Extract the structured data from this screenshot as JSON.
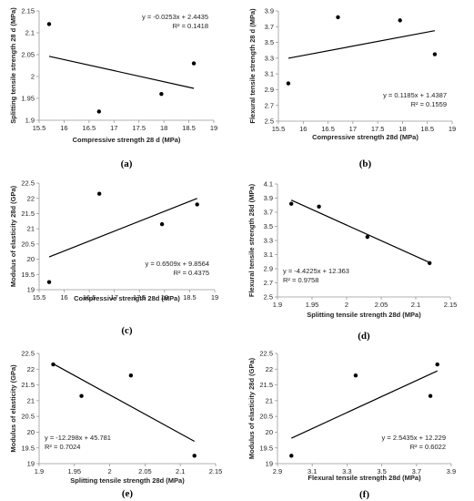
{
  "chart_data": [
    {
      "type": "scatter",
      "panel_label": "(a)",
      "xlabel": "Compressive strength 28 d (MPa)",
      "ylabel": "Splitting tensile strength 28 d (MPa)",
      "xlim": [
        15.5,
        19
      ],
      "ylim": [
        1.9,
        2.15
      ],
      "xticks": [
        "15.5",
        "16",
        "16.5",
        "17",
        "17.5",
        "18",
        "18.5",
        "19"
      ],
      "yticks": [
        "1.9",
        "1.95",
        "2",
        "2.05",
        "2.1",
        "2.15"
      ],
      "x": [
        15.7,
        16.7,
        17.95,
        18.6
      ],
      "y": [
        2.12,
        1.92,
        1.96,
        2.03
      ],
      "trendline": {
        "slope": -0.0253,
        "intercept": 2.4435
      },
      "equation": "y = -0.0253x + 2.4435",
      "r2": "R² = 0.1418",
      "eq_position": "top-right"
    },
    {
      "type": "scatter",
      "panel_label": "(b)",
      "xlabel": "Compressive strength 28d (MPa)",
      "ylabel": "Flexural tensile strength 28 d (MPa)",
      "xlim": [
        15.5,
        19
      ],
      "ylim": [
        2.5,
        3.9
      ],
      "xticks": [
        "15.5",
        "16",
        "16.5",
        "17",
        "17.5",
        "18",
        "18.5",
        "19"
      ],
      "yticks": [
        "2.5",
        "2.7",
        "2.9",
        "3.1",
        "3.3",
        "3.5",
        "3.7",
        "3.9"
      ],
      "x": [
        15.7,
        16.7,
        17.95,
        18.65
      ],
      "y": [
        2.98,
        3.82,
        3.78,
        3.35
      ],
      "trendline": {
        "slope": 0.1185,
        "intercept": 1.4387
      },
      "equation": "y = 0.1185x + 1.4387",
      "r2": "R² = 0.1559",
      "eq_position": "bottom-right"
    },
    {
      "type": "scatter",
      "panel_label": "(c)",
      "xlabel": "Compressive strength 28d (MPa)",
      "ylabel": "Modulus of elasticity 28d (GPa)",
      "xlim": [
        15.5,
        19
      ],
      "ylim": [
        19,
        22.5
      ],
      "xticks": [
        "15.5",
        "16",
        "16.5",
        "17",
        "17.5",
        "18",
        "18.5",
        "19"
      ],
      "yticks": [
        "19",
        "19.5",
        "20",
        "20.5",
        "21",
        "21.5",
        "22",
        "22.5"
      ],
      "x": [
        15.7,
        16.7,
        17.95,
        18.65
      ],
      "y": [
        19.25,
        22.15,
        21.15,
        21.8
      ],
      "trendline": {
        "slope": 0.6509,
        "intercept": 9.8564
      },
      "equation": "y = 0.6509x + 9.8564",
      "r2": "R² = 0.4375",
      "eq_position": "bottom-right"
    },
    {
      "type": "scatter",
      "panel_label": "(d)",
      "xlabel": "Splitting tensile strength 28d (MPa)",
      "ylabel": "Flexural tensile strength 28d (MPa)",
      "xlim": [
        1.9,
        2.15
      ],
      "ylim": [
        2.5,
        4.1
      ],
      "xticks": [
        "1.9",
        "1.95",
        "2",
        "2.05",
        "2.1",
        "2.15"
      ],
      "yticks": [
        "2.5",
        "2.7",
        "2.9",
        "3.1",
        "3.3",
        "3.5",
        "3.7",
        "3.9",
        "4.1"
      ],
      "x": [
        1.92,
        1.96,
        2.03,
        2.12
      ],
      "y": [
        3.82,
        3.78,
        3.35,
        2.98
      ],
      "trendline": {
        "slope": -4.4225,
        "intercept": 12.363
      },
      "equation": "y = -4.4225x + 12.363",
      "r2": "R² = 0.9758",
      "eq_position": "bottom-left"
    },
    {
      "type": "scatter",
      "panel_label": "(e)",
      "xlabel": "Splitting tensile strength 28d (MPa)",
      "ylabel": "Modulus of elasticity (GPa)",
      "xlim": [
        1.9,
        2.15
      ],
      "ylim": [
        19,
        22.5
      ],
      "xticks": [
        "1.9",
        "1.95",
        "2",
        "2.05",
        "2.1",
        "2.15"
      ],
      "yticks": [
        "19",
        "19.5",
        "20",
        "20.5",
        "21",
        "21.5",
        "22",
        "22.5"
      ],
      "x": [
        1.92,
        1.96,
        2.03,
        2.12
      ],
      "y": [
        22.15,
        21.15,
        21.8,
        19.25
      ],
      "trendline": {
        "slope": -12.298,
        "intercept": 45.781
      },
      "equation": "y = -12.298x + 45.781",
      "r2": "R² = 0.7024",
      "eq_position": "bottom-left"
    },
    {
      "type": "scatter",
      "panel_label": "(f)",
      "xlabel": "Flexural tensile strength 28d (MPa)",
      "ylabel": "Modulus of elasticity 28d (GPa)",
      "xlim": [
        2.9,
        3.9
      ],
      "ylim": [
        19,
        22.5
      ],
      "xticks": [
        "2.9",
        "3.1",
        "3.3",
        "3.5",
        "3.7",
        "3.9"
      ],
      "yticks": [
        "19",
        "19.5",
        "20",
        "20.5",
        "21",
        "21.5",
        "22",
        "22.5"
      ],
      "x": [
        2.98,
        3.35,
        3.78,
        3.82
      ],
      "y": [
        19.25,
        21.8,
        21.15,
        22.15
      ],
      "trendline": {
        "slope": 2.5435,
        "intercept": 12.229
      },
      "equation": "y = 2.5435x + 12.229",
      "r2": "R² = 0.6022",
      "eq_position": "bottom-right"
    }
  ]
}
